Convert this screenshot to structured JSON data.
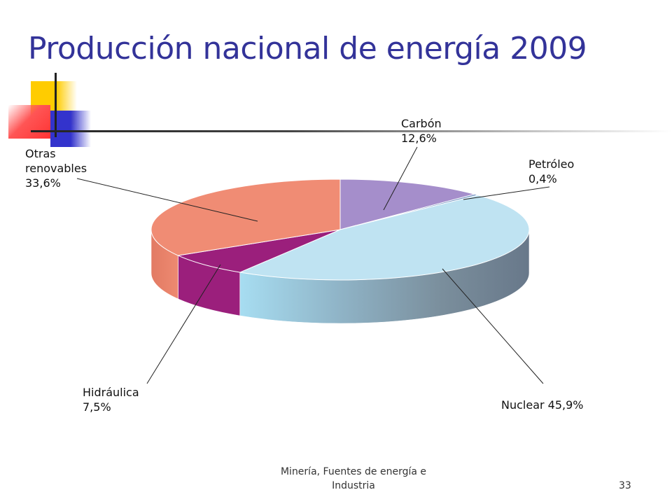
{
  "slide": {
    "title": "Producción nacional de energía 2009",
    "footer_line1": "Minería, Fuentes de energía e",
    "footer_line2": "Industria",
    "page_number": "33"
  },
  "colors": {
    "title": "#333399",
    "Carbón": "#a58ecb",
    "Petróleo": "#6e8fc0",
    "Nuclear": "#bfe3f2",
    "Hidráulica": "#9b1f7c",
    "Otras renovables": "#f08c74"
  },
  "chart_data": {
    "type": "pie",
    "style": "3d",
    "title": "",
    "slices": [
      {
        "name": "Carbón",
        "value": 12.6,
        "label": [
          "Carbón",
          "12,6%"
        ]
      },
      {
        "name": "Petróleo",
        "value": 0.4,
        "label": [
          "Petróleo",
          "0,4%"
        ]
      },
      {
        "name": "Nuclear",
        "value": 45.9,
        "label": [
          "Nuclear 45,9%"
        ]
      },
      {
        "name": "Hidráulica",
        "value": 7.5,
        "label": [
          "Hidráulica",
          "7,5%"
        ]
      },
      {
        "name": "Otras renovables",
        "value": 33.6,
        "label": [
          "Otras",
          "renovables",
          "33,6%"
        ]
      }
    ]
  }
}
